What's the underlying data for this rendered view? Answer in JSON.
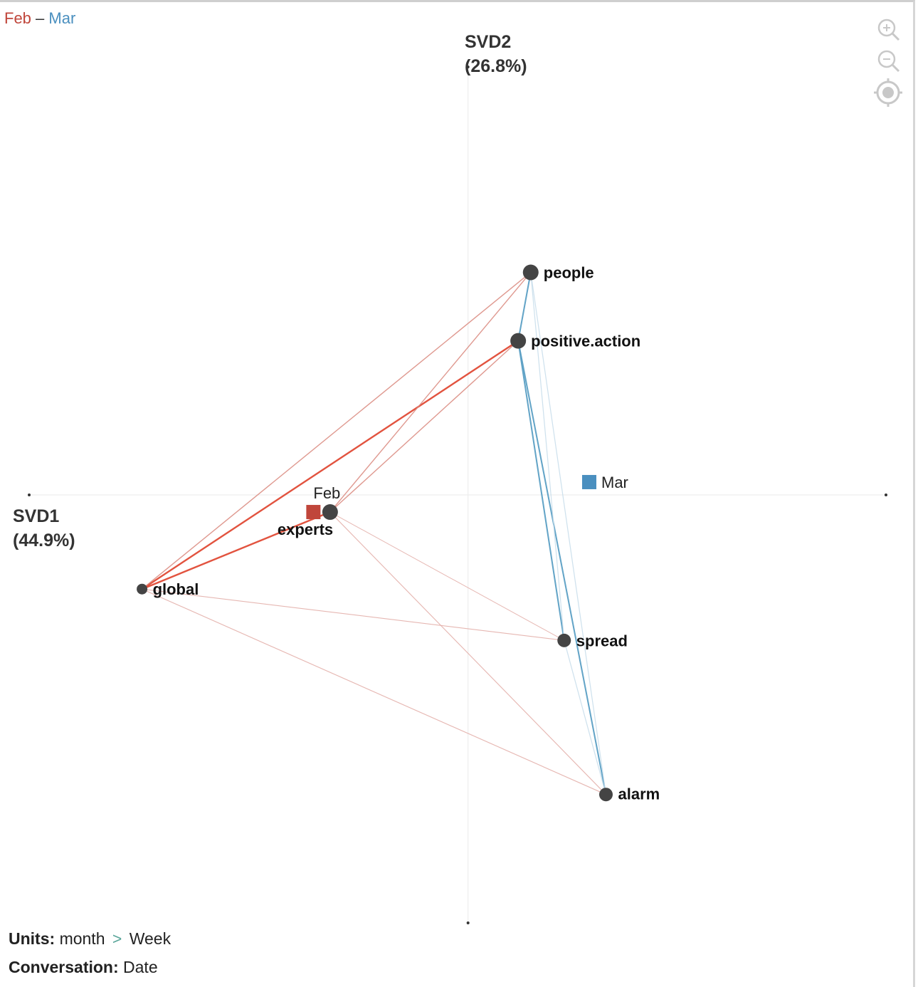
{
  "legend": {
    "from": "Feb",
    "separator": "–",
    "to": "Mar",
    "from_color": "#c0463b",
    "to_color": "#4a8fbf"
  },
  "chart_data": {
    "type": "scatter",
    "title": "",
    "xlabel": "SVD1",
    "xlabel_pct": "(44.9%)",
    "ylabel": "SVD2",
    "ylabel_pct": "(26.8%)",
    "xlim": [
      -1.05,
      1.0
    ],
    "ylim": [
      -1.0,
      1.0
    ],
    "nodes": [
      {
        "id": "people",
        "label": "people",
        "x": 0.15,
        "y": 0.52,
        "size": "large"
      },
      {
        "id": "positive.action",
        "label": "positive.action",
        "x": 0.12,
        "y": 0.36,
        "size": "large"
      },
      {
        "id": "experts",
        "label": "experts",
        "x": -0.33,
        "y": -0.04,
        "size": "large"
      },
      {
        "id": "global",
        "label": "global",
        "x": -0.78,
        "y": -0.22,
        "size": "small"
      },
      {
        "id": "spread",
        "label": "spread",
        "x": 0.23,
        "y": -0.34,
        "size": "medium"
      },
      {
        "id": "alarm",
        "label": "alarm",
        "x": 0.33,
        "y": -0.7,
        "size": "medium"
      }
    ],
    "groups": [
      {
        "id": "Feb",
        "label": "Feb",
        "x": -0.37,
        "y": -0.04,
        "color": "#c0463b"
      },
      {
        "id": "Mar",
        "label": "Mar",
        "x": 0.29,
        "y": 0.03,
        "color": "#4a8fbf"
      }
    ],
    "edges": [
      {
        "source": "global",
        "target": "positive.action",
        "group": "Feb",
        "weight": 1.0
      },
      {
        "source": "global",
        "target": "experts",
        "group": "Feb",
        "weight": 1.0
      },
      {
        "source": "global",
        "target": "people",
        "group": "Feb",
        "weight": 0.45
      },
      {
        "source": "experts",
        "target": "people",
        "group": "Feb",
        "weight": 0.45
      },
      {
        "source": "experts",
        "target": "positive.action",
        "group": "Feb",
        "weight": 0.45
      },
      {
        "source": "global",
        "target": "spread",
        "group": "Feb",
        "weight": 0.3
      },
      {
        "source": "global",
        "target": "alarm",
        "group": "Feb",
        "weight": 0.3
      },
      {
        "source": "experts",
        "target": "alarm",
        "group": "Feb",
        "weight": 0.3
      },
      {
        "source": "experts",
        "target": "spread",
        "group": "Feb",
        "weight": 0.2
      },
      {
        "source": "people",
        "target": "positive.action",
        "group": "Mar",
        "weight": 0.8
      },
      {
        "source": "positive.action",
        "target": "spread",
        "group": "Mar",
        "weight": 0.8
      },
      {
        "source": "positive.action",
        "target": "alarm",
        "group": "Mar",
        "weight": 0.8
      },
      {
        "source": "people",
        "target": "spread",
        "group": "Mar",
        "weight": 0.35
      },
      {
        "source": "people",
        "target": "alarm",
        "group": "Mar",
        "weight": 0.35
      },
      {
        "source": "spread",
        "target": "alarm",
        "group": "Mar",
        "weight": 0.35
      }
    ]
  },
  "controls": {
    "zoom_in": "zoom-in-icon",
    "zoom_out": "zoom-out-icon",
    "recenter": "target-icon"
  },
  "footer": {
    "units_label": "Units:",
    "units_value": "month",
    "units_arrow": ">",
    "units_sub": "Week",
    "conversation_label": "Conversation:",
    "conversation_value": "Date"
  }
}
